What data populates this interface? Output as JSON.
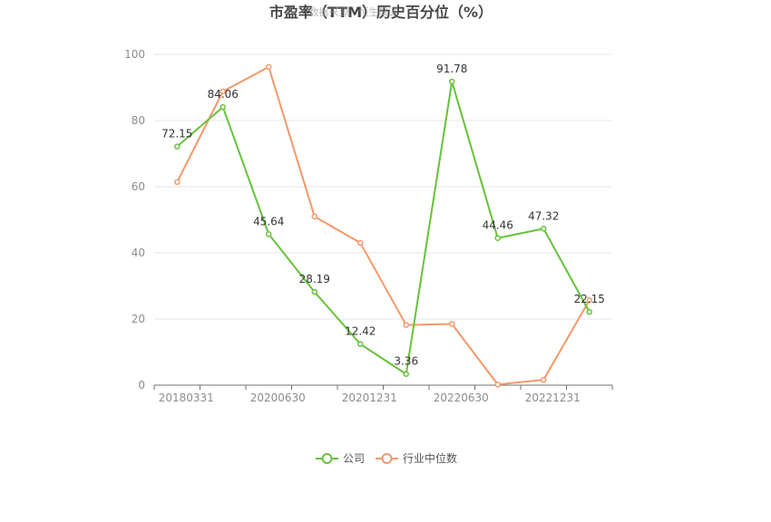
{
  "chart_data": {
    "type": "line",
    "title": "市盈率（TTM）历史百分位（%）",
    "watermark": "数据来源：恒生聚源",
    "xlabel": "",
    "ylabel": "",
    "ylim": [
      0,
      100
    ],
    "yticks": [
      "0",
      "20",
      "40",
      "60",
      "80",
      "100"
    ],
    "xtick_labels": [
      "20180331",
      "20200630",
      "20201231",
      "20220630",
      "20221231"
    ],
    "grid": "horizontal",
    "legend_position": "bottom",
    "series": [
      {
        "name": "公司",
        "color": "#66c23a",
        "values": [
          72.15,
          84.06,
          45.64,
          28.19,
          12.42,
          3.36,
          91.78,
          44.46,
          47.32,
          22.15
        ],
        "labels": [
          "72.15",
          "84.06",
          "45.64",
          "28.19",
          "12.42",
          "3.36",
          "91.78",
          "44.46",
          "47.32",
          "22.15"
        ]
      },
      {
        "name": "行业中位数",
        "color": "#f2986a",
        "values": [
          61.4,
          88.8,
          96.2,
          51.0,
          43.0,
          18.2,
          18.5,
          0.2,
          1.6,
          25.7
        ]
      }
    ]
  }
}
